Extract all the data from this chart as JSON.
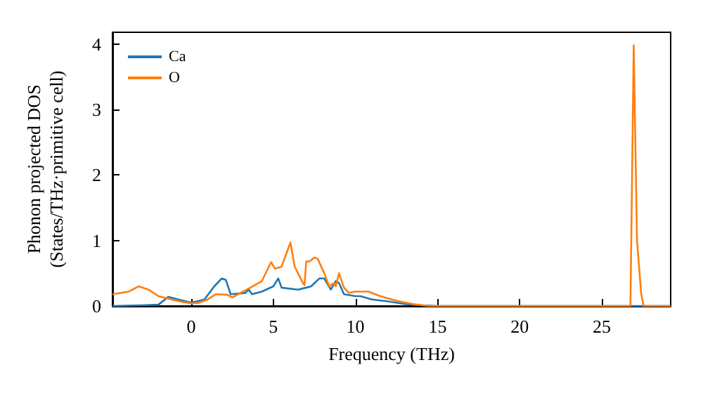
{
  "chart_data": {
    "type": "line",
    "xlabel": "Frequency (THz)",
    "ylabel": "Phonon projected DOS\n(States/THz·primitive cell)",
    "xlim": [
      -4.8,
      29.2
    ],
    "ylim": [
      0,
      4.18
    ],
    "xticks": [
      0,
      5,
      10,
      15,
      20,
      25
    ],
    "yticks": [
      0,
      1,
      2,
      3,
      4
    ],
    "legend": "top left",
    "grid": false,
    "marker": "none",
    "line_style": "solid",
    "series": [
      {
        "name": "Ca",
        "color": "#1f77b4",
        "x": [
          -4.8,
          -3,
          -2,
          -1.4,
          -0.8,
          0,
          0.8,
          1.4,
          1.85,
          2.1,
          2.4,
          3.3,
          3.5,
          3.7,
          4.3,
          5.0,
          5.3,
          5.5,
          6.5,
          7.0,
          7.3,
          7.8,
          8.1,
          8.5,
          8.8,
          9.0,
          9.3,
          10,
          10.3,
          11,
          12,
          13,
          14,
          15,
          29.2
        ],
        "values": [
          0,
          0.01,
          0.02,
          0.14,
          0.1,
          0.05,
          0.1,
          0.3,
          0.42,
          0.4,
          0.18,
          0.2,
          0.25,
          0.18,
          0.22,
          0.3,
          0.42,
          0.28,
          0.25,
          0.28,
          0.3,
          0.42,
          0.42,
          0.25,
          0.38,
          0.35,
          0.18,
          0.15,
          0.15,
          0.1,
          0.07,
          0.03,
          0.01,
          0,
          0
        ]
      },
      {
        "name": "O",
        "color": "#ff7f0e",
        "x": [
          -4.8,
          -3.8,
          -3.2,
          -2.6,
          -2,
          -1.2,
          -0.5,
          0,
          0.5,
          1,
          1.5,
          2.2,
          2.5,
          3,
          3.6,
          4.3,
          4.86,
          5.1,
          5.5,
          6.04,
          6.3,
          6.8,
          6.9,
          7.0,
          7.2,
          7.5,
          7.7,
          8.1,
          8.4,
          8.7,
          8.8,
          9.0,
          9.3,
          9.6,
          10,
          10.8,
          11.5,
          12.5,
          13.5,
          14.5,
          26.75,
          26.95,
          27.15,
          27.4,
          27.55,
          29.2
        ],
        "values": [
          0.18,
          0.22,
          0.3,
          0.25,
          0.15,
          0.1,
          0.06,
          0.04,
          0.05,
          0.1,
          0.18,
          0.17,
          0.13,
          0.2,
          0.28,
          0.38,
          0.67,
          0.57,
          0.6,
          0.97,
          0.6,
          0.35,
          0.32,
          0.68,
          0.68,
          0.74,
          0.72,
          0.5,
          0.3,
          0.35,
          0.3,
          0.5,
          0.28,
          0.2,
          0.22,
          0.22,
          0.15,
          0.08,
          0.03,
          0,
          0,
          3.98,
          1.0,
          0.2,
          0,
          0
        ]
      }
    ]
  }
}
